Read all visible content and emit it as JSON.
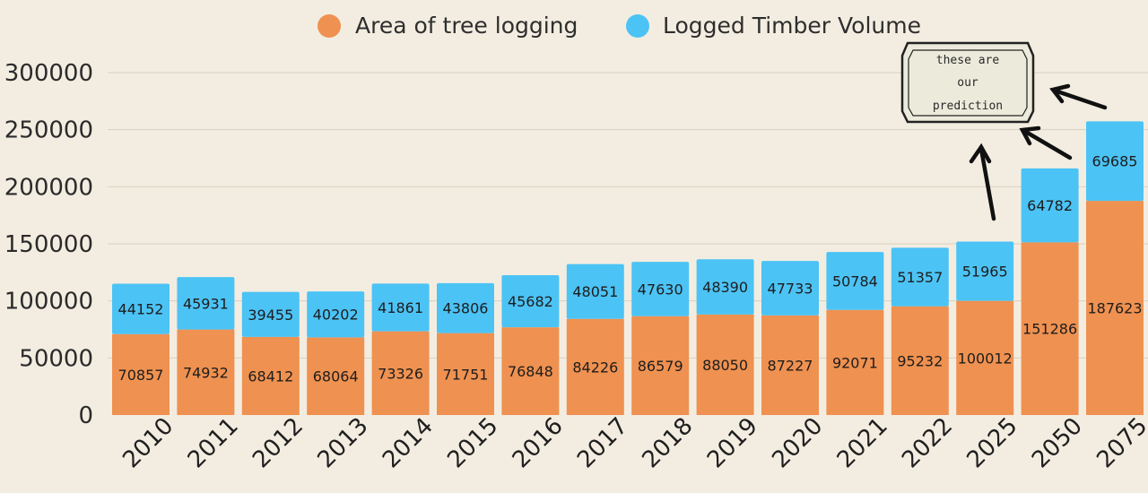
{
  "chart_data": {
    "type": "bar",
    "stacked": true,
    "categories": [
      "2010",
      "2011",
      "2012",
      "2013",
      "2014",
      "2015",
      "2016",
      "2017",
      "2018",
      "2019",
      "2020",
      "2021",
      "2022",
      "2025",
      "2050",
      "2075"
    ],
    "series": [
      {
        "name": "Area of tree logging",
        "color": "#ef9150",
        "values": [
          70857,
          74932,
          68412,
          68064,
          73326,
          71751,
          76848,
          84226,
          86579,
          88050,
          87227,
          92071,
          95232,
          100012,
          151286,
          187623
        ]
      },
      {
        "name": "Logged Timber Volume",
        "color": "#4cc3f5",
        "values": [
          44152,
          45931,
          39455,
          40202,
          41861,
          43806,
          45682,
          48051,
          47630,
          48390,
          47733,
          50784,
          51357,
          51965,
          64782,
          69685
        ]
      }
    ],
    "yticks": [
      0,
      50000,
      100000,
      150000,
      200000,
      250000,
      300000
    ],
    "ylim": [
      0,
      300000
    ],
    "grid": true,
    "legend_position": "top",
    "annotation": {
      "lines": [
        "these are",
        "our",
        "prediction"
      ]
    }
  }
}
